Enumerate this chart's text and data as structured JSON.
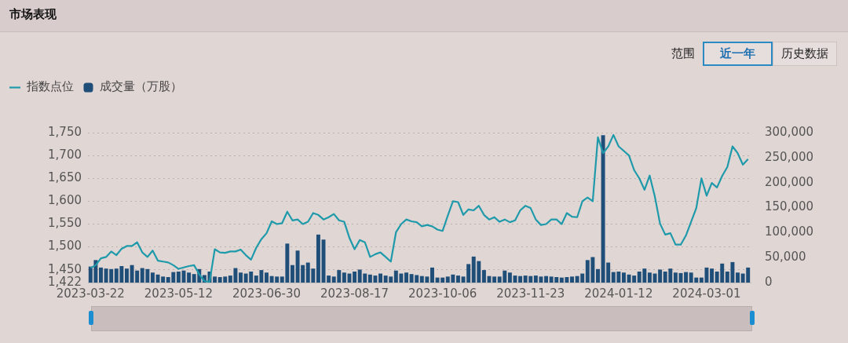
{
  "chart_data": {
    "type": "line",
    "title": "市场表现",
    "annotations": [
      "范围",
      "近一年",
      "历史数据"
    ],
    "categories": [
      "2023-03-22",
      null,
      null,
      null,
      null,
      null,
      null,
      null,
      null,
      null,
      null,
      null,
      null,
      null,
      null,
      null,
      null,
      "2023-05-12",
      null,
      null,
      null,
      null,
      null,
      null,
      null,
      null,
      null,
      null,
      null,
      null,
      null,
      null,
      null,
      null,
      "2023-06-30",
      null,
      null,
      null,
      null,
      null,
      null,
      null,
      null,
      null,
      null,
      null,
      null,
      null,
      null,
      null,
      null,
      "2023-08-17",
      null,
      null,
      null,
      null,
      null,
      null,
      null,
      null,
      null,
      null,
      null,
      null,
      null,
      null,
      null,
      null,
      "2023-10-06",
      null,
      null,
      null,
      null,
      null,
      null,
      null,
      null,
      null,
      null,
      null,
      null,
      null,
      null,
      null,
      null,
      "2023-11-23",
      null,
      null,
      null,
      null,
      null,
      null,
      null,
      null,
      null,
      null,
      null,
      null,
      null,
      null,
      null,
      null,
      "2024-01-12",
      null,
      null,
      null,
      null,
      null,
      null,
      null,
      null,
      null,
      null,
      null,
      null,
      null,
      null,
      null,
      null,
      "2024-03-01",
      null,
      null,
      null,
      null,
      null,
      null,
      null,
      null
    ],
    "series": [
      {
        "name": "指数点位",
        "color": "#1e9aaa",
        "values": [
          1454,
          1460,
          1475,
          1478,
          1490,
          1482,
          1496,
          1502,
          1502,
          1510,
          1488,
          1478,
          1492,
          1470,
          1468,
          1466,
          1460,
          1452,
          1455,
          1458,
          1460,
          1440,
          1425,
          1424,
          1495,
          1488,
          1487,
          1490,
          1490,
          1494,
          1482,
          1472,
          1498,
          1517,
          1530,
          1556,
          1550,
          1552,
          1577,
          1558,
          1560,
          1550,
          1555,
          1574,
          1570,
          1560,
          1565,
          1572,
          1558,
          1555,
          1520,
          1495,
          1515,
          1510,
          1478,
          1484,
          1488,
          1478,
          1468,
          1532,
          1550,
          1560,
          1556,
          1554,
          1545,
          1548,
          1545,
          1538,
          1535,
          1568,
          1600,
          1598,
          1570,
          1582,
          1580,
          1590,
          1570,
          1560,
          1565,
          1555,
          1560,
          1554,
          1558,
          1580,
          1590,
          1585,
          1560,
          1548,
          1550,
          1560,
          1560,
          1550,
          1574,
          1566,
          1565,
          1600,
          1608,
          1600,
          1740,
          1705,
          1720,
          1745,
          1720,
          1710,
          1700,
          1668,
          1650,
          1625,
          1656,
          1610,
          1551,
          1527,
          1530,
          1505,
          1505,
          1525,
          1555,
          1585,
          1650,
          1612,
          1640,
          1630,
          1655,
          1675,
          1720,
          1705,
          1680,
          1692
        ]
      },
      {
        "name": "成交量（万股）",
        "type": "bar",
        "axis": "y2",
        "color": "#1f4e79",
        "values": [
          32000,
          45000,
          30000,
          28000,
          27000,
          28000,
          33000,
          28000,
          35000,
          24000,
          29000,
          27000,
          20000,
          16000,
          12000,
          11000,
          21000,
          22000,
          24000,
          20000,
          17000,
          27000,
          15000,
          22000,
          12000,
          11000,
          12000,
          14000,
          29000,
          20000,
          18000,
          22000,
          14000,
          25000,
          20000,
          13000,
          12000,
          12000,
          78000,
          35000,
          64000,
          35000,
          40000,
          28000,
          96000,
          86000,
          14000,
          12000,
          25000,
          20000,
          18000,
          22000,
          26000,
          18000,
          16000,
          14000,
          18000,
          14000,
          12000,
          24000,
          18000,
          20000,
          17000,
          15000,
          13000,
          12000,
          30000,
          10000,
          10000,
          12000,
          16000,
          14000,
          12000,
          37000,
          52000,
          43000,
          25000,
          13000,
          12000,
          12000,
          24000,
          20000,
          14000,
          13000,
          14000,
          13000,
          14000,
          12000,
          13000,
          12000,
          11000,
          10000,
          11000,
          12000,
          13000,
          18000,
          45000,
          51000,
          27000,
          295000,
          40000,
          21000,
          22000,
          20000,
          16000,
          14000,
          22000,
          28000,
          20000,
          18000,
          26000,
          22000,
          28000,
          20000,
          19000,
          21000,
          20000,
          10000,
          10000,
          30000,
          28000,
          22000,
          38000,
          22000,
          41000,
          20000,
          18000,
          30000
        ]
      }
    ],
    "ylim": [
      1422,
      1750
    ],
    "yticks": [
      {
        "value": 1422,
        "label": "1,422"
      },
      {
        "value": 1450,
        "label": "1,450"
      },
      {
        "value": 1500,
        "label": "1,500"
      },
      {
        "value": 1550,
        "label": "1,550"
      },
      {
        "value": 1600,
        "label": "1,600"
      },
      {
        "value": 1650,
        "label": "1,650"
      },
      {
        "value": 1700,
        "label": "1,700"
      },
      {
        "value": 1750,
        "label": "1,750"
      }
    ],
    "y2lim": [
      0,
      300000
    ],
    "y2ticks": [
      0,
      {
        "value": 50000,
        "label": "50,000"
      },
      {
        "value": 100000,
        "label": "100,000"
      },
      {
        "value": 150000,
        "label": "150,000"
      },
      {
        "value": 200000,
        "label": "200,000"
      },
      {
        "value": 250000,
        "label": "250,000"
      },
      {
        "value": 300000,
        "label": "300,000"
      }
    ],
    "grid": "y",
    "legend": "top left",
    "marker": "none",
    "line_style": "solid"
  }
}
